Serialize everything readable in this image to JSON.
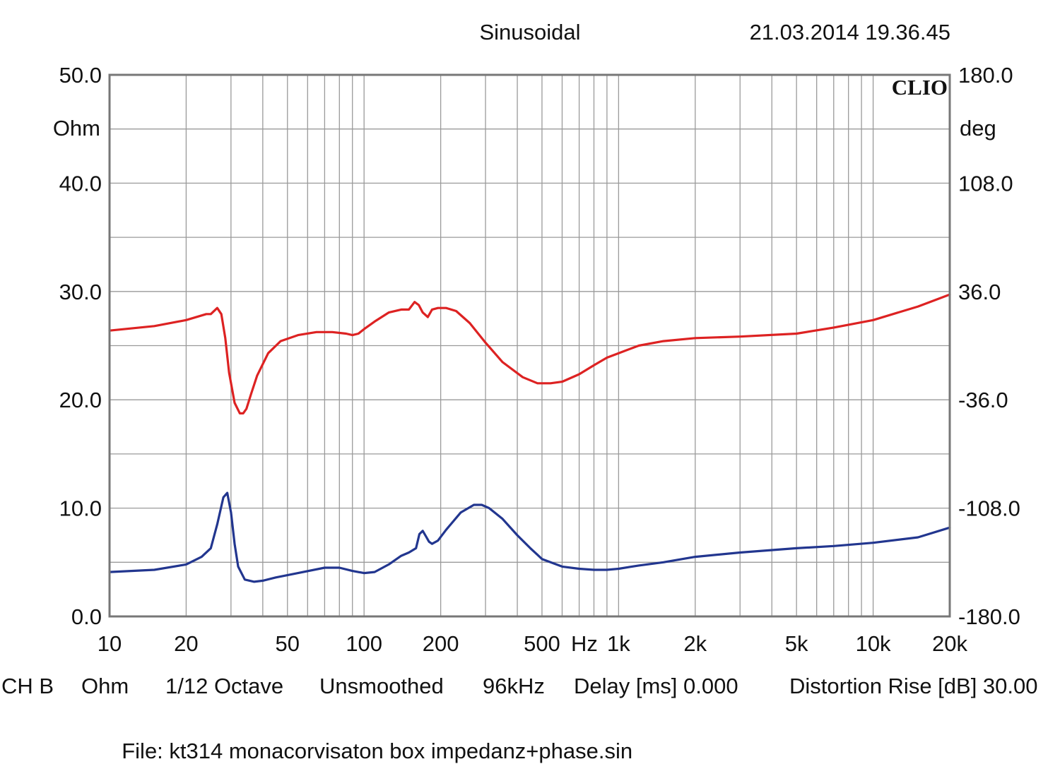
{
  "header": {
    "measurement_mode": "Sinusoidal",
    "timestamp": "21.03.2014 19.36.45"
  },
  "logo": "CLIO",
  "footer": {
    "channel": "CH B",
    "unit": "Ohm",
    "resolution": "1/12 Octave",
    "smoothing": "Unsmoothed",
    "sample_rate": "96kHz",
    "delay": "Delay [ms] 0.000",
    "distortion_rise": "Distortion Rise [dB] 30.00",
    "file_label": "File: kt314 monacorvisaton box impedanz+phase.sin"
  },
  "chart_data": {
    "type": "line",
    "x_scale": "log",
    "xlim": [
      10,
      20000
    ],
    "x_ticks": [
      {
        "value": 10,
        "label": "10"
      },
      {
        "value": 20,
        "label": "20"
      },
      {
        "value": 50,
        "label": "50"
      },
      {
        "value": 100,
        "label": "100"
      },
      {
        "value": 200,
        "label": "200"
      },
      {
        "value": 500,
        "label": "500"
      },
      {
        "value": 1000,
        "label": "1k"
      },
      {
        "value": 2000,
        "label": "2k"
      },
      {
        "value": 5000,
        "label": "5k"
      },
      {
        "value": 10000,
        "label": "10k"
      },
      {
        "value": 20000,
        "label": "20k"
      }
    ],
    "x_unit_label": "Hz",
    "ylim_left": [
      0,
      50
    ],
    "y_left_ticks": [
      "0.0",
      "10.0",
      "20.0",
      "30.0",
      "40.0",
      "50.0"
    ],
    "y_left_unit": "Ohm",
    "ylim_right": [
      -180,
      180
    ],
    "y_right_ticks": [
      "-180.0",
      "-108.0",
      "-36.0",
      "36.0",
      "108.0",
      "180.0"
    ],
    "y_right_unit": "deg",
    "grid": true,
    "series": [
      {
        "color": "#dd2222",
        "axis": "right",
        "x": [
          10,
          15,
          20,
          24,
          25,
          26.5,
          27.5,
          28.5,
          29.5,
          31,
          32.5,
          33.5,
          34.5,
          36,
          38,
          42,
          47,
          55,
          65,
          75,
          85,
          90,
          95,
          100,
          110,
          125,
          140,
          150,
          158,
          164,
          170,
          178,
          185,
          195,
          210,
          230,
          260,
          300,
          350,
          420,
          480,
          540,
          600,
          700,
          800,
          900,
          1000,
          1200,
          1500,
          2000,
          3000,
          5000,
          7000,
          10000,
          15000,
          20000
        ],
        "y": [
          10,
          13,
          17,
          21,
          21,
          25,
          21,
          5,
          -18,
          -38,
          -45,
          -45,
          -42,
          -32,
          -20,
          -5,
          3,
          7,
          9,
          9,
          8,
          7,
          8,
          11,
          16,
          22,
          24,
          24,
          29,
          27,
          22,
          19,
          24,
          25,
          25,
          23,
          15,
          2,
          -11,
          -21,
          -25,
          -25,
          -24,
          -19,
          -13,
          -8,
          -5,
          0,
          3,
          5,
          6,
          8,
          12,
          17,
          26,
          34
        ]
      },
      {
        "color": "#22368f",
        "axis": "left",
        "x": [
          10,
          15,
          20,
          23,
          25,
          26.5,
          28,
          29,
          30,
          31,
          32,
          34,
          37,
          40,
          45,
          55,
          70,
          80,
          90,
          100,
          110,
          125,
          140,
          150,
          160,
          165,
          170,
          175,
          180,
          185,
          195,
          210,
          240,
          270,
          290,
          310,
          350,
          400,
          450,
          500,
          600,
          700,
          800,
          900,
          1000,
          1200,
          1500,
          2000,
          3000,
          5000,
          7000,
          10000,
          15000,
          20000
        ],
        "y": [
          4.1,
          4.3,
          4.8,
          5.5,
          6.3,
          8.5,
          11,
          11.4,
          9.6,
          6.7,
          4.6,
          3.4,
          3.2,
          3.3,
          3.6,
          4.0,
          4.5,
          4.5,
          4.2,
          4.0,
          4.1,
          4.8,
          5.6,
          5.9,
          6.3,
          7.6,
          7.9,
          7.4,
          6.9,
          6.7,
          7.0,
          8.0,
          9.6,
          10.3,
          10.3,
          10.0,
          9.0,
          7.5,
          6.3,
          5.3,
          4.6,
          4.4,
          4.3,
          4.3,
          4.4,
          4.7,
          5.0,
          5.5,
          5.9,
          6.3,
          6.5,
          6.8,
          7.3,
          8.2
        ]
      }
    ]
  }
}
